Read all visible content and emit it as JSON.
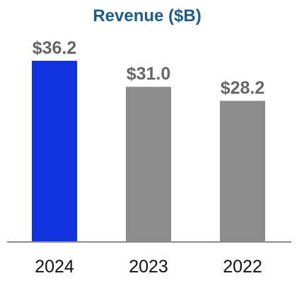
{
  "chart_data": {
    "type": "bar",
    "title": "Revenue ($B)",
    "xlabel": "",
    "ylabel": "",
    "categories": [
      "2024",
      "2023",
      "2022"
    ],
    "values": [
      36.2,
      31.0,
      28.2
    ],
    "value_labels": [
      "$36.2",
      "$31.0",
      "$28.2"
    ],
    "ylim": [
      0,
      40
    ],
    "grid": false,
    "legend": "none",
    "colors": {
      "title": "#1f5c8b",
      "highlight_bar": "#1033e0",
      "bar": "#8c8c8c",
      "value_label": "#666666",
      "tick_label": "#111111",
      "baseline": "#8c8c8c"
    }
  }
}
